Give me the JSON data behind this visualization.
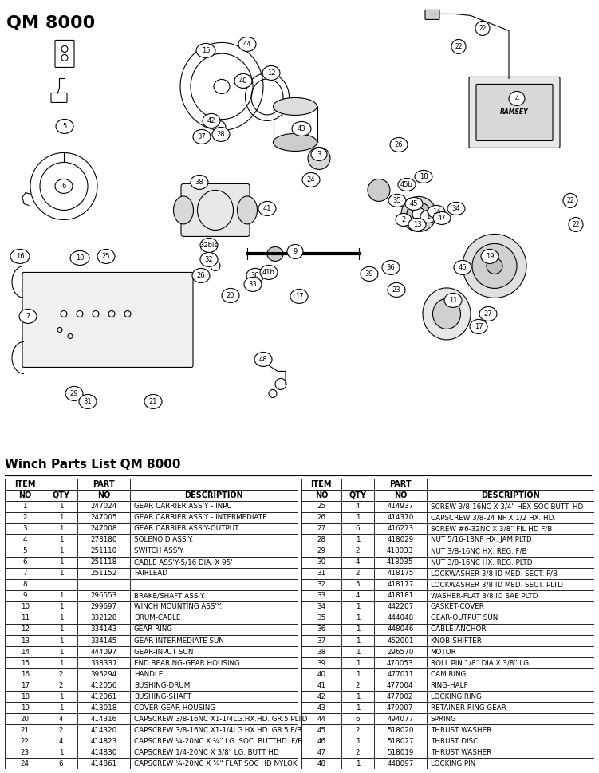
{
  "title": "QM 8000",
  "parts_list_title": "Winch Parts List QM 8000",
  "bg": "#ffffff",
  "lc": "#000000",
  "parts_left": [
    [
      "1",
      "1",
      "247024",
      "GEAR CARRIER ASS'Y - INPUT"
    ],
    [
      "2",
      "1",
      "247005",
      "GEAR CARRIER ASS'Y - INTERMEDIATE"
    ],
    [
      "3",
      "1",
      "247008",
      "GEAR CARRIER ASS'Y-OUTPUT"
    ],
    [
      "4",
      "1",
      "278180",
      "SOLENOID ASS'Y."
    ],
    [
      "5",
      "1",
      "251110",
      "SWITCH ASS'Y."
    ],
    [
      "6",
      "1",
      "251118",
      "CABLE ASS'Y-5/16 DIA. X 95'"
    ],
    [
      "7",
      "1",
      "251152",
      "FAIRLEAD"
    ],
    [
      "8",
      "",
      "",
      ""
    ],
    [
      "9",
      "1",
      "296553",
      "BRAKE/SHAFT ASS'Y."
    ],
    [
      "10",
      "1",
      "299697",
      "WINCH MOUNTING ASS'Y."
    ],
    [
      "11",
      "1",
      "332128",
      "DRUM-CABLE"
    ],
    [
      "12",
      "1",
      "334143",
      "GEAR-RING"
    ],
    [
      "13",
      "1",
      "334145",
      "GEAR-INTERMEDIATE SUN"
    ],
    [
      "14",
      "1",
      "444097",
      "GEAR-INPUT SUN"
    ],
    [
      "15",
      "1",
      "338337",
      "END BEARING-GEAR HOUSING"
    ],
    [
      "16",
      "2",
      "395294",
      "HANDLE"
    ],
    [
      "17",
      "2",
      "412056",
      "BUSHING-DRUM"
    ],
    [
      "18",
      "1",
      "412061",
      "BUSHING-SHAFT"
    ],
    [
      "19",
      "1",
      "413018",
      "COVER-GEAR HOUSING"
    ],
    [
      "20",
      "4",
      "414316",
      "CAPSCREW 3/8-16NC X1-1/4LG.HX.HD. GR.5 PLTD"
    ],
    [
      "21",
      "2",
      "414320",
      "CAPSCREW 3/8-16NC X1-1/4LG.HX.HD. GR.5 F/B"
    ],
    [
      "22",
      "4",
      "414823",
      "CAPSCREW ¼-20NC X ¾\" LG. SOC. BUTTHD. F/B"
    ],
    [
      "23",
      "1",
      "414830",
      "CAPSCREW 1/4-20NC X 3/8\" LG. BUTT HD"
    ],
    [
      "24",
      "6",
      "414861",
      "CAPSCREW ¼-20NC X ¾\" FLAT SOC HD NYLOK"
    ]
  ],
  "parts_right": [
    [
      "25",
      "4",
      "414937",
      "SCREW 3/8-16NC X 3/4\" HEX SOC BUTT. HD"
    ],
    [
      "26",
      "1",
      "414370",
      "CAPSCREW 3/8-24 NF X 1/2 HX. HD."
    ],
    [
      "27",
      "6",
      "416273",
      "SCREW #6-32NC X 3/8\" FIL HD F/B"
    ],
    [
      "28",
      "1",
      "418029",
      "NUT 5/16-18NF HX. JAM PLTD"
    ],
    [
      "29",
      "2",
      "418033",
      "NUT 3/8-16NC HX. REG. F/B"
    ],
    [
      "30",
      "4",
      "418035",
      "NUT 3/8-16NC HX. REG. PLTD"
    ],
    [
      "31",
      "2",
      "418175",
      "LOCKWASHER 3/8 ID MED. SECT. F/B"
    ],
    [
      "32",
      "5",
      "418177",
      "LOCKWASHER 3/8 ID MED. SECT. PLTD"
    ],
    [
      "33",
      "4",
      "418181",
      "WASHER-FLAT 3/8 ID SAE PLTD"
    ],
    [
      "34",
      "1",
      "442207",
      "GASKET-COVER"
    ],
    [
      "35",
      "1",
      "444048",
      "GEAR-OUTPUT SUN"
    ],
    [
      "36",
      "1",
      "448046",
      "CABLE ANCHOR"
    ],
    [
      "37",
      "1",
      "452001",
      "KNOB-SHIFTER"
    ],
    [
      "38",
      "1",
      "296570",
      "MOTOR"
    ],
    [
      "39",
      "1",
      "470053",
      "ROLL PIN 1/8\" DIA X 3/8\" LG"
    ],
    [
      "40",
      "1",
      "477011",
      "CAM RING"
    ],
    [
      "41",
      "2",
      "477004",
      "RING-HALF"
    ],
    [
      "42",
      "1",
      "477002",
      "LOCKING RING"
    ],
    [
      "43",
      "1",
      "479007",
      "RETAINER-RING GEAR"
    ],
    [
      "44",
      "6",
      "494077",
      "SPRING"
    ],
    [
      "45",
      "2",
      "518020",
      "THRUST WASHER"
    ],
    [
      "46",
      "1",
      "518027",
      "THRUST DISC"
    ],
    [
      "47",
      "2",
      "518019",
      "THRUST WASHER"
    ],
    [
      "48",
      "1",
      "448097",
      "LOCKING PIN"
    ]
  ],
  "numbered_parts": [
    [
      5,
      95,
      75,
      "5"
    ],
    [
      15,
      258,
      68,
      "15"
    ],
    [
      44,
      308,
      55,
      "44"
    ],
    [
      40,
      303,
      100,
      "40"
    ],
    [
      12,
      337,
      88,
      "12"
    ],
    [
      42,
      265,
      148,
      "42"
    ],
    [
      37,
      253,
      165,
      "37"
    ],
    [
      28,
      275,
      162,
      "28"
    ],
    [
      43,
      370,
      160,
      "43"
    ],
    [
      3,
      397,
      195,
      "3"
    ],
    [
      24,
      390,
      220,
      "24"
    ],
    [
      38,
      250,
      245,
      "38"
    ],
    [
      41,
      333,
      255,
      "41"
    ],
    [
      30,
      320,
      340,
      "30"
    ],
    [
      32,
      262,
      320,
      "32"
    ],
    [
      26,
      252,
      338,
      "26"
    ],
    [
      41,
      335,
      335,
      "41"
    ],
    [
      33,
      316,
      350,
      "33"
    ],
    [
      20,
      288,
      365,
      "20"
    ],
    [
      9,
      370,
      310,
      "9"
    ],
    [
      17,
      375,
      365,
      "17"
    ],
    [
      48,
      330,
      448,
      "48"
    ],
    [
      21,
      190,
      490,
      "21"
    ],
    [
      29,
      95,
      486,
      "29"
    ],
    [
      31,
      108,
      494,
      "31"
    ],
    [
      4,
      640,
      120,
      "4"
    ],
    [
      26,
      500,
      178,
      "26"
    ],
    [
      22,
      605,
      35,
      "22"
    ],
    [
      22,
      575,
      58,
      "22"
    ],
    [
      22,
      710,
      248,
      "22"
    ],
    [
      22,
      722,
      278,
      "22"
    ],
    [
      45,
      510,
      230,
      "45"
    ],
    [
      18,
      530,
      218,
      "18"
    ],
    [
      35,
      497,
      248,
      "35"
    ],
    [
      2,
      505,
      272,
      "2"
    ],
    [
      13,
      523,
      275,
      "13"
    ],
    [
      1,
      537,
      268,
      "1"
    ],
    [
      14,
      546,
      262,
      "14"
    ],
    [
      45,
      519,
      253,
      "45"
    ],
    [
      47,
      553,
      270,
      "47"
    ],
    [
      34,
      572,
      258,
      "34"
    ],
    [
      46,
      580,
      330,
      "46"
    ],
    [
      19,
      614,
      318,
      "19"
    ],
    [
      27,
      612,
      390,
      "27"
    ],
    [
      11,
      565,
      375,
      "11"
    ],
    [
      17,
      600,
      405,
      "17"
    ],
    [
      39,
      462,
      338,
      "39"
    ],
    [
      36,
      490,
      330,
      "36"
    ],
    [
      23,
      497,
      358,
      "23"
    ],
    [
      6,
      65,
      215,
      "6"
    ],
    [
      16,
      25,
      310,
      "16"
    ],
    [
      10,
      100,
      318,
      "10"
    ],
    [
      25,
      133,
      316,
      "25"
    ],
    [
      7,
      38,
      390,
      "7"
    ]
  ]
}
